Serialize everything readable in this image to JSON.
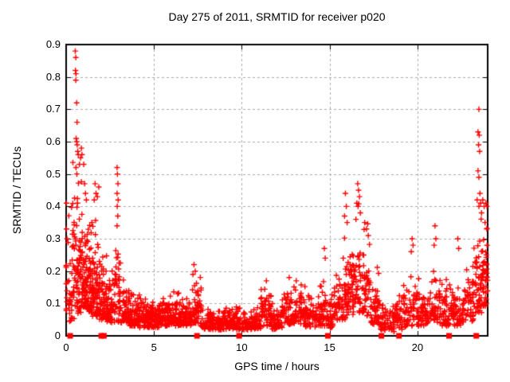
{
  "chart_data": {
    "type": "scatter",
    "title": "Day 275 of 2011, SRMTID for receiver p020",
    "xlabel": "GPS time / hours",
    "ylabel": "SRMTID / TECUs",
    "xlim": [
      0,
      24
    ],
    "ylim": [
      0,
      0.9
    ],
    "xtick_values": [
      0,
      5,
      10,
      15,
      20
    ],
    "xtick_labels": [
      "0",
      "5",
      "10",
      "15",
      "20"
    ],
    "ytick_values": [
      0,
      0.1,
      0.2,
      0.3,
      0.4,
      0.5,
      0.6,
      0.7,
      0.8,
      0.9
    ],
    "ytick_labels": [
      "0",
      "0.1",
      "0.2",
      "0.3",
      "0.4",
      "0.5",
      "0.6",
      "0.7",
      "0.8",
      "0.9"
    ],
    "grid": true,
    "legend_position": "none",
    "marker": "plus",
    "zero_marker": "filled-square",
    "colors": {
      "points": "#ff0000",
      "grid": "#a9a9a9",
      "border": "#000000",
      "background": "#ffffff",
      "text": "#000000"
    },
    "random_seed": 20110275,
    "density_bins": [
      [
        0.0,
        0.3,
        26,
        0.03,
        0.14,
        0.44
      ],
      [
        0.3,
        0.6,
        40,
        0.05,
        0.2,
        0.88
      ],
      [
        0.6,
        0.9,
        55,
        0.07,
        0.17,
        0.62
      ],
      [
        0.9,
        1.2,
        60,
        0.08,
        0.12,
        0.5
      ],
      [
        1.2,
        1.5,
        55,
        0.07,
        0.11,
        0.43
      ],
      [
        1.5,
        1.9,
        62,
        0.06,
        0.11,
        0.47
      ],
      [
        1.9,
        2.3,
        55,
        0.05,
        0.09,
        0.38
      ],
      [
        2.3,
        2.7,
        50,
        0.04,
        0.08,
        0.33
      ],
      [
        2.7,
        3.1,
        46,
        0.04,
        0.1,
        0.53
      ],
      [
        3.1,
        3.6,
        48,
        0.04,
        0.06,
        0.27
      ],
      [
        3.6,
        4.1,
        50,
        0.03,
        0.045,
        0.18
      ],
      [
        4.1,
        4.6,
        50,
        0.025,
        0.035,
        0.13
      ],
      [
        4.6,
        5.1,
        52,
        0.025,
        0.032,
        0.12
      ],
      [
        5.1,
        5.6,
        54,
        0.025,
        0.038,
        0.16
      ],
      [
        5.6,
        6.1,
        54,
        0.03,
        0.04,
        0.17
      ],
      [
        6.1,
        6.6,
        54,
        0.03,
        0.042,
        0.17
      ],
      [
        6.6,
        7.1,
        54,
        0.03,
        0.038,
        0.15
      ],
      [
        7.1,
        7.7,
        58,
        0.035,
        0.055,
        0.22
      ],
      [
        7.7,
        8.3,
        54,
        0.02,
        0.032,
        0.12
      ],
      [
        8.3,
        9.0,
        58,
        0.018,
        0.028,
        0.1
      ],
      [
        9.0,
        9.6,
        56,
        0.02,
        0.038,
        0.15
      ],
      [
        9.6,
        10.4,
        62,
        0.018,
        0.028,
        0.11
      ],
      [
        10.4,
        11.1,
        60,
        0.02,
        0.03,
        0.12
      ],
      [
        11.1,
        11.7,
        56,
        0.03,
        0.045,
        0.18
      ],
      [
        11.7,
        12.3,
        56,
        0.02,
        0.032,
        0.13
      ],
      [
        12.3,
        13.0,
        60,
        0.035,
        0.045,
        0.18
      ],
      [
        13.0,
        13.6,
        56,
        0.035,
        0.045,
        0.17
      ],
      [
        13.6,
        14.3,
        58,
        0.025,
        0.04,
        0.15
      ],
      [
        14.3,
        15.0,
        58,
        0.03,
        0.06,
        0.28
      ],
      [
        15.0,
        15.5,
        46,
        0.02,
        0.07,
        0.3
      ],
      [
        15.5,
        16.1,
        58,
        0.05,
        0.1,
        0.42
      ],
      [
        16.1,
        16.7,
        58,
        0.06,
        0.12,
        0.47
      ],
      [
        16.7,
        17.3,
        58,
        0.06,
        0.12,
        0.46
      ],
      [
        17.3,
        17.9,
        52,
        0.03,
        0.07,
        0.33
      ],
      [
        17.9,
        18.7,
        56,
        0.012,
        0.035,
        0.15
      ],
      [
        18.7,
        19.4,
        56,
        0.02,
        0.055,
        0.26
      ],
      [
        19.4,
        20.1,
        52,
        0.03,
        0.06,
        0.3
      ],
      [
        20.1,
        20.7,
        48,
        0.03,
        0.05,
        0.2
      ],
      [
        20.7,
        21.4,
        52,
        0.04,
        0.07,
        0.34
      ],
      [
        21.4,
        22.0,
        48,
        0.03,
        0.055,
        0.25
      ],
      [
        22.0,
        22.6,
        48,
        0.03,
        0.06,
        0.31
      ],
      [
        22.6,
        23.2,
        52,
        0.04,
        0.075,
        0.33
      ],
      [
        23.2,
        23.7,
        52,
        0.07,
        0.12,
        0.7
      ],
      [
        23.7,
        24.0,
        44,
        0.09,
        0.11,
        0.45
      ]
    ],
    "peak_points": [
      [
        0.02,
        0.41
      ],
      [
        0.02,
        0.33
      ],
      [
        0.05,
        0.3
      ],
      [
        0.52,
        0.88
      ],
      [
        0.55,
        0.86
      ],
      [
        0.53,
        0.82
      ],
      [
        0.56,
        0.81
      ],
      [
        0.55,
        0.79
      ],
      [
        0.6,
        0.72
      ],
      [
        0.62,
        0.66
      ],
      [
        0.57,
        0.61
      ],
      [
        0.6,
        0.6
      ],
      [
        0.63,
        0.59
      ],
      [
        0.66,
        0.57
      ],
      [
        0.69,
        0.56
      ],
      [
        0.56,
        0.52
      ],
      [
        0.61,
        0.5
      ],
      [
        0.76,
        0.53
      ],
      [
        0.82,
        0.55
      ],
      [
        0.87,
        0.58
      ],
      [
        0.9,
        0.56
      ],
      [
        1.0,
        0.53
      ],
      [
        1.05,
        0.47
      ],
      [
        1.1,
        0.44
      ],
      [
        1.15,
        0.42
      ],
      [
        1.6,
        0.42
      ],
      [
        1.65,
        0.47
      ],
      [
        1.7,
        0.44
      ],
      [
        1.78,
        0.43
      ],
      [
        1.86,
        0.46
      ],
      [
        2.9,
        0.52
      ],
      [
        2.92,
        0.5
      ],
      [
        2.95,
        0.47
      ],
      [
        2.9,
        0.44
      ],
      [
        2.96,
        0.42
      ],
      [
        2.91,
        0.4
      ],
      [
        2.94,
        0.37
      ],
      [
        2.9,
        0.34
      ],
      [
        7.28,
        0.22
      ],
      [
        7.35,
        0.2
      ],
      [
        7.22,
        0.19
      ],
      [
        11.4,
        0.17
      ],
      [
        12.7,
        0.18
      ],
      [
        13.1,
        0.17
      ],
      [
        14.7,
        0.27
      ],
      [
        14.75,
        0.24
      ],
      [
        15.85,
        0.37
      ],
      [
        15.9,
        0.44
      ],
      [
        15.95,
        0.4
      ],
      [
        16.0,
        0.35
      ],
      [
        16.5,
        0.36
      ],
      [
        16.55,
        0.41
      ],
      [
        16.6,
        0.47
      ],
      [
        16.62,
        0.4
      ],
      [
        16.65,
        0.45
      ],
      [
        16.7,
        0.43
      ],
      [
        16.75,
        0.38
      ],
      [
        17.0,
        0.35
      ],
      [
        17.1,
        0.33
      ],
      [
        17.2,
        0.31
      ],
      [
        19.65,
        0.26
      ],
      [
        19.7,
        0.3
      ],
      [
        19.75,
        0.28
      ],
      [
        20.95,
        0.28
      ],
      [
        21.0,
        0.34
      ],
      [
        21.05,
        0.3
      ],
      [
        22.3,
        0.3
      ],
      [
        22.35,
        0.27
      ],
      [
        23.4,
        0.42
      ],
      [
        23.45,
        0.63
      ],
      [
        23.45,
        0.51
      ],
      [
        23.48,
        0.59
      ],
      [
        23.5,
        0.7
      ],
      [
        23.5,
        0.49
      ],
      [
        23.5,
        0.4
      ],
      [
        23.52,
        0.62
      ],
      [
        23.54,
        0.57
      ],
      [
        23.56,
        0.44
      ],
      [
        23.6,
        0.41
      ],
      [
        23.65,
        0.38
      ],
      [
        23.72,
        0.42
      ],
      [
        23.8,
        0.4
      ],
      [
        23.85,
        0.35
      ],
      [
        23.9,
        0.41
      ],
      [
        23.95,
        0.33
      ],
      [
        23.96,
        0.4
      ]
    ],
    "zero_marker_x": [
      0.23,
      2.0,
      2.15,
      7.45,
      9.85,
      14.9,
      17.95,
      18.95,
      21.8,
      23.35
    ]
  }
}
